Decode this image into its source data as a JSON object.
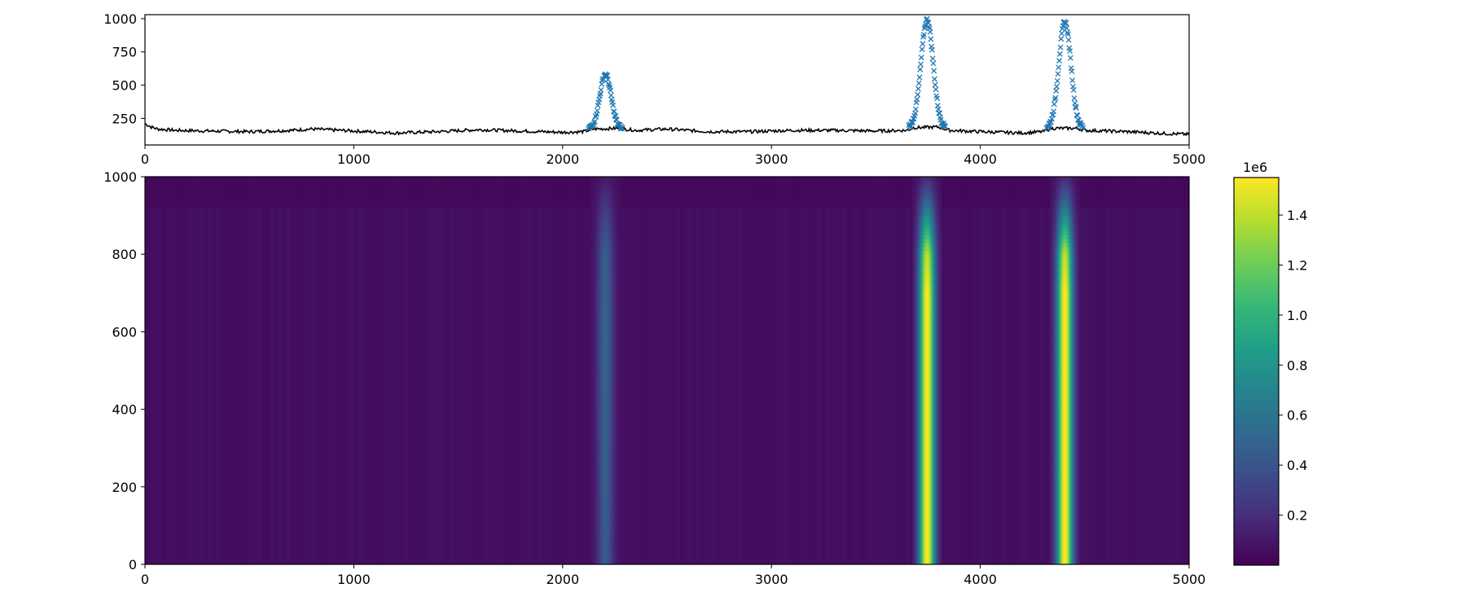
{
  "chart_data": [
    {
      "type": "scatter",
      "panel": "top",
      "description_of_marks": "black line trace with blue x markers on the three peaks",
      "title": "",
      "xlabel": "",
      "ylabel": "",
      "xlim": [
        0,
        5000
      ],
      "ylim": [
        50,
        1030
      ],
      "x_ticks": [
        0,
        1000,
        2000,
        3000,
        4000,
        5000
      ],
      "y_ticks": [
        250,
        500,
        750,
        1000
      ],
      "grid": false,
      "colors": {
        "line": "#000000",
        "markers": "#1f77b4"
      },
      "baseline": {
        "points": [
          [
            0,
            210
          ],
          [
            30,
            185
          ],
          [
            60,
            170
          ],
          [
            150,
            160
          ],
          [
            300,
            155
          ],
          [
            500,
            150
          ],
          [
            700,
            160
          ],
          [
            800,
            170
          ],
          [
            1000,
            155
          ],
          [
            1200,
            140
          ],
          [
            1400,
            150
          ],
          [
            1600,
            165
          ],
          [
            1800,
            155
          ],
          [
            2000,
            145
          ],
          [
            2100,
            150
          ],
          [
            2150,
            170
          ],
          [
            2270,
            175
          ],
          [
            2350,
            160
          ],
          [
            2500,
            170
          ],
          [
            2700,
            150
          ],
          [
            2900,
            150
          ],
          [
            3100,
            160
          ],
          [
            3300,
            160
          ],
          [
            3500,
            155
          ],
          [
            3650,
            160
          ],
          [
            3680,
            180
          ],
          [
            3800,
            185
          ],
          [
            3850,
            160
          ],
          [
            4000,
            150
          ],
          [
            4200,
            140
          ],
          [
            4300,
            150
          ],
          [
            4340,
            175
          ],
          [
            4460,
            175
          ],
          [
            4500,
            160
          ],
          [
            4700,
            150
          ],
          [
            4900,
            135
          ],
          [
            5000,
            130
          ]
        ]
      },
      "peaks": [
        {
          "center": 2205,
          "height": 580,
          "sigma": 27
        },
        {
          "center": 3745,
          "height": 990,
          "sigma": 29
        },
        {
          "center": 4405,
          "height": 975,
          "sigma": 29
        }
      ]
    },
    {
      "type": "heatmap",
      "panel": "bottom",
      "title": "",
      "xlabel": "",
      "ylabel": "",
      "xlim": [
        0,
        5000
      ],
      "ylim": [
        0,
        1000
      ],
      "x_ticks": [
        0,
        1000,
        2000,
        3000,
        4000,
        5000
      ],
      "y_ticks": [
        0,
        200,
        400,
        600,
        800,
        1000
      ],
      "colormap": "viridis",
      "bands": [
        {
          "center": 2205,
          "sigma": 27,
          "peak_value": 500000,
          "profile_rows": [
            [
              0,
              0.85
            ],
            [
              600,
              1.0
            ],
            [
              800,
              0.9
            ],
            [
              900,
              0.55
            ],
            [
              1000,
              0.1
            ]
          ]
        },
        {
          "center": 3745,
          "sigma": 27,
          "peak_value": 1550000,
          "profile_rows": [
            [
              0,
              1.0
            ],
            [
              700,
              1.0
            ],
            [
              800,
              0.9
            ],
            [
              880,
              0.55
            ],
            [
              950,
              0.25
            ],
            [
              1000,
              0.08
            ]
          ]
        },
        {
          "center": 4405,
          "sigma": 27,
          "peak_value": 1550000,
          "profile_rows": [
            [
              0,
              1.0
            ],
            [
              700,
              1.0
            ],
            [
              800,
              0.9
            ],
            [
              880,
              0.55
            ],
            [
              950,
              0.25
            ],
            [
              1000,
              0.08
            ]
          ]
        }
      ],
      "background_value": 60000,
      "colorbar": {
        "min": 0,
        "max": 1550000,
        "offset_label": "1e6",
        "tick_values": [
          0.2,
          0.4,
          0.6,
          0.8,
          1.0,
          1.2,
          1.4
        ],
        "tick_labels": [
          "0.2",
          "0.4",
          "0.6",
          "0.8",
          "1.0",
          "1.2",
          "1.4"
        ]
      }
    }
  ]
}
